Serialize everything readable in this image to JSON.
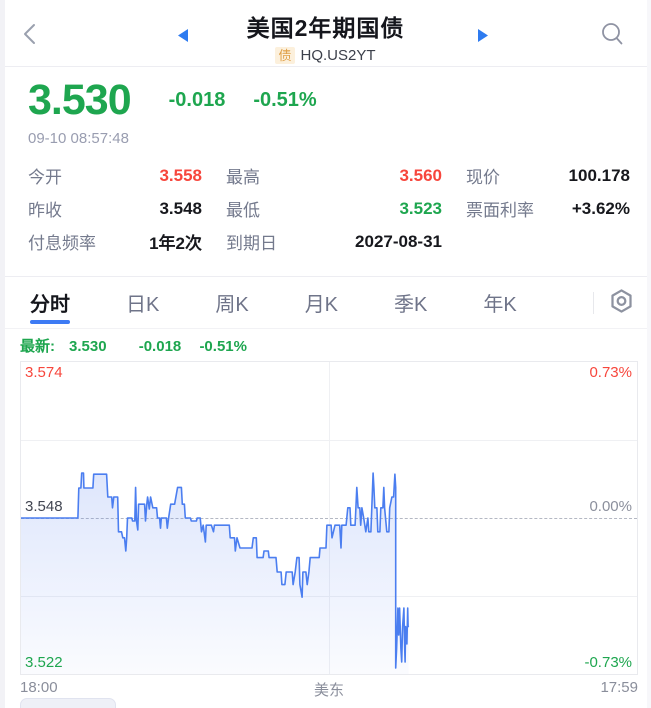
{
  "header": {
    "title": "美国2年期国债",
    "type_badge": "债",
    "symbol": "HQ.US2YT"
  },
  "quote": {
    "price": "3.530",
    "change": "-0.018",
    "change_pct": "-0.51%",
    "timestamp": "09-10 08:57:48"
  },
  "stats": {
    "rows": [
      [
        {
          "label": "今开",
          "value": "3.558",
          "color": "red"
        },
        {
          "label": "最高",
          "value": "3.560",
          "color": "red"
        },
        {
          "label": "现价",
          "value": "100.178",
          "color": "dark"
        }
      ],
      [
        {
          "label": "昨收",
          "value": "3.548",
          "color": "dark"
        },
        {
          "label": "最低",
          "value": "3.523",
          "color": "green"
        },
        {
          "label": "票面利率",
          "value": "+3.62%",
          "color": "dark"
        }
      ],
      [
        {
          "label": "付息频率",
          "value": "1年2次",
          "color": "dark"
        },
        {
          "label": "到期日",
          "value": "2027-08-31",
          "color": "dark"
        },
        {
          "label": "",
          "value": "",
          "color": "dark"
        }
      ]
    ]
  },
  "tabs": {
    "items": [
      {
        "label": "分时",
        "active": true
      },
      {
        "label": "日K",
        "active": false
      },
      {
        "label": "周K",
        "active": false
      },
      {
        "label": "月K",
        "active": false
      },
      {
        "label": "季K",
        "active": false
      },
      {
        "label": "年K",
        "active": false
      }
    ]
  },
  "latest": {
    "label": "最新:",
    "price": "3.530",
    "change": "-0.018",
    "pct": "-0.51%"
  },
  "time_axis": {
    "start": "18:00",
    "timezone_label": "美东",
    "end": "17:59"
  },
  "colors": {
    "up_red": "#f7463c",
    "down_green": "#1ea64f",
    "accent_blue": "#2e7bf0",
    "line_blue": "#4b7ef0",
    "badge_bg": "#fcf0dc",
    "badge_text": "#e09f46"
  },
  "chart_data": {
    "type": "line",
    "title": "美国2年期国债 分时走势",
    "x_range_minutes": 1440,
    "xlabel_left": "18:00",
    "xlabel_center": "美东",
    "xlabel_right": "17:59",
    "ylim": [
      3.522,
      3.574
    ],
    "prev_close": 3.548,
    "grid": "quarter horizontal lines, center vertical line, dashed prev-close midline",
    "labels": {
      "top_price": "3.574",
      "top_pct": "0.73%",
      "mid_price": "3.548",
      "mid_pct": "0.00%",
      "bottom_price": "3.522",
      "bottom_pct": "-0.73%"
    },
    "series": [
      {
        "name": "price",
        "color": "#4b7ef0",
        "points": [
          [
            0,
            3.548
          ],
          [
            133,
            3.548
          ],
          [
            135,
            3.553
          ],
          [
            140,
            3.553
          ],
          [
            142,
            3.5555
          ],
          [
            146,
            3.5555
          ],
          [
            147,
            3.553
          ],
          [
            168,
            3.553
          ],
          [
            170,
            3.5553
          ],
          [
            200,
            3.5553
          ],
          [
            203,
            3.5515
          ],
          [
            212,
            3.5515
          ],
          [
            214,
            3.5497
          ],
          [
            217,
            3.5515
          ],
          [
            226,
            3.5515
          ],
          [
            228,
            3.5457
          ],
          [
            235,
            3.5457
          ],
          [
            238,
            3.5447
          ],
          [
            242,
            3.5447
          ],
          [
            245,
            3.5425
          ],
          [
            247,
            3.5447
          ],
          [
            249,
            3.548
          ],
          [
            259,
            3.548
          ],
          [
            261,
            3.5475
          ],
          [
            266,
            3.5475
          ],
          [
            268,
            3.5531
          ],
          [
            270,
            3.5475
          ],
          [
            273,
            3.546
          ],
          [
            275,
            3.5503
          ],
          [
            289,
            3.5503
          ],
          [
            291,
            3.5475
          ],
          [
            294,
            3.5503
          ],
          [
            296,
            3.5515
          ],
          [
            300,
            3.5495
          ],
          [
            303,
            3.5515
          ],
          [
            308,
            3.5497
          ],
          [
            317,
            3.5497
          ],
          [
            319,
            3.548
          ],
          [
            324,
            3.548
          ],
          [
            326,
            3.5463
          ],
          [
            328,
            3.548
          ],
          [
            340,
            3.548
          ],
          [
            342,
            3.5463
          ],
          [
            345,
            3.548
          ],
          [
            350,
            3.5503
          ],
          [
            359,
            3.5503
          ],
          [
            366,
            3.5531
          ],
          [
            375,
            3.5531
          ],
          [
            377,
            3.5503
          ],
          [
            382,
            3.5503
          ],
          [
            384,
            3.548
          ],
          [
            396,
            3.548
          ],
          [
            398,
            3.5475
          ],
          [
            410,
            3.5475
          ],
          [
            412,
            3.548
          ],
          [
            419,
            3.548
          ],
          [
            422,
            3.5457
          ],
          [
            426,
            3.5468
          ],
          [
            431,
            3.544
          ],
          [
            433,
            3.5468
          ],
          [
            445,
            3.5468
          ],
          [
            450,
            3.5457
          ],
          [
            452,
            3.5468
          ],
          [
            487,
            3.5468
          ],
          [
            489,
            3.5447
          ],
          [
            499,
            3.5447
          ],
          [
            501,
            3.5425
          ],
          [
            505,
            3.5447
          ],
          [
            512,
            3.543
          ],
          [
            540,
            3.543
          ],
          [
            543,
            3.5447
          ],
          [
            550,
            3.5447
          ],
          [
            552,
            3.5414
          ],
          [
            566,
            3.5414
          ],
          [
            568,
            3.5425
          ],
          [
            578,
            3.5425
          ],
          [
            580,
            3.5414
          ],
          [
            596,
            3.5414
          ],
          [
            599,
            3.539
          ],
          [
            608,
            3.539
          ],
          [
            610,
            3.5369
          ],
          [
            617,
            3.5369
          ],
          [
            620,
            3.539
          ],
          [
            634,
            3.539
          ],
          [
            636,
            3.5369
          ],
          [
            641,
            3.539
          ],
          [
            645,
            3.5414
          ],
          [
            650,
            3.5414
          ],
          [
            652,
            3.5369
          ],
          [
            657,
            3.5348
          ],
          [
            659,
            3.539
          ],
          [
            666,
            3.539
          ],
          [
            669,
            3.5369
          ],
          [
            673,
            3.539
          ],
          [
            676,
            3.5414
          ],
          [
            697,
            3.5414
          ],
          [
            699,
            3.543
          ],
          [
            713,
            3.543
          ],
          [
            715,
            3.5468
          ],
          [
            725,
            3.5468
          ],
          [
            727,
            3.5447
          ],
          [
            734,
            3.5468
          ],
          [
            745,
            3.5468
          ],
          [
            748,
            3.543
          ],
          [
            750,
            3.5468
          ],
          [
            760,
            3.5468
          ],
          [
            764,
            3.5497
          ],
          [
            769,
            3.5497
          ],
          [
            771,
            3.5468
          ],
          [
            781,
            3.5468
          ],
          [
            783,
            3.5497
          ],
          [
            785,
            3.5531
          ],
          [
            788,
            3.5497
          ],
          [
            792,
            3.5497
          ],
          [
            794,
            3.5468
          ],
          [
            797,
            3.5497
          ],
          [
            801,
            3.548
          ],
          [
            806,
            3.5457
          ],
          [
            811,
            3.548
          ],
          [
            813,
            3.5457
          ],
          [
            818,
            3.5457
          ],
          [
            820,
            3.5497
          ],
          [
            823,
            3.5555
          ],
          [
            825,
            3.5531
          ],
          [
            827,
            3.5497
          ],
          [
            832,
            3.5497
          ],
          [
            834,
            3.5457
          ],
          [
            839,
            3.5457
          ],
          [
            841,
            3.5497
          ],
          [
            846,
            3.5497
          ],
          [
            848,
            3.5531
          ],
          [
            850,
            3.5497
          ],
          [
            855,
            3.5457
          ],
          [
            860,
            3.5457
          ],
          [
            862,
            3.5497
          ],
          [
            867,
            3.5515
          ],
          [
            871,
            3.5515
          ],
          [
            874,
            3.5553
          ],
          [
            876,
            3.5531
          ],
          [
            876,
            3.523
          ],
          [
            878,
            3.5262
          ],
          [
            881,
            3.533
          ],
          [
            883,
            3.5285
          ],
          [
            885,
            3.533
          ],
          [
            888,
            3.5262
          ],
          [
            890,
            3.524
          ],
          [
            892,
            3.5299
          ],
          [
            895,
            3.533
          ],
          [
            897,
            3.5262
          ],
          [
            898,
            3.524
          ],
          [
            899,
            3.5299
          ],
          [
            902,
            3.527
          ],
          [
            904,
            3.533
          ],
          [
            905,
            3.5299
          ],
          [
            906,
            3.53
          ]
        ]
      }
    ]
  }
}
